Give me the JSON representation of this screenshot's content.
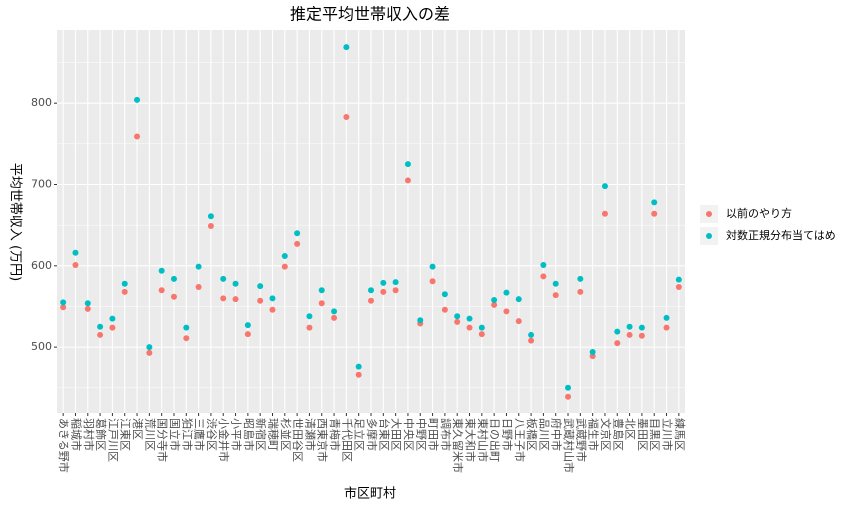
{
  "chart_data": {
    "type": "scatter",
    "title": "推定平均世帯収入の差",
    "x_label": "市区町村",
    "y_label": "平均世帯収入 (万円)",
    "categories": [
      "あきる野市",
      "稲城市",
      "羽村市",
      "葛飾区",
      "江戸川区",
      "江東区",
      "港区",
      "荒川区",
      "国分寺市",
      "国立市",
      "狛江市",
      "三鷹市",
      "渋谷区",
      "小金井市",
      "小平市",
      "昭島市",
      "新宿区",
      "瑞穂町",
      "杉並区",
      "世田谷区",
      "清瀬市",
      "西東京市",
      "青梅市",
      "千代田区",
      "足立区",
      "多摩市",
      "台東区",
      "大田区",
      "中央区",
      "中野区",
      "町田市",
      "調布市",
      "東久留米市",
      "東大和市",
      "東村山市",
      "日の出町",
      "日野市",
      "八王子市",
      "板橋区",
      "品川区",
      "府中市",
      "武蔵村山市",
      "武蔵野市",
      "福生市",
      "文京区",
      "豊島区",
      "北区",
      "墨田区",
      "目黒区",
      "立川市",
      "練馬区"
    ],
    "series": [
      {
        "name": "以前のやり方",
        "color": "#F8766D",
        "values": [
          549,
          601,
          547,
          515,
          524,
          568,
          759,
          493,
          570,
          562,
          511,
          574,
          649,
          560,
          559,
          516,
          557,
          546,
          599,
          627,
          524,
          554,
          536,
          783,
          466,
          557,
          568,
          570,
          705,
          529,
          581,
          546,
          531,
          524,
          516,
          552,
          544,
          532,
          508,
          587,
          564,
          439,
          568,
          489,
          664,
          505,
          515,
          514,
          664,
          524,
          574
        ]
      },
      {
        "name": "対数正規分布当てはめ",
        "color": "#00BFC4",
        "values": [
          555,
          616,
          554,
          525,
          535,
          578,
          804,
          500,
          594,
          584,
          524,
          599,
          661,
          584,
          578,
          527,
          575,
          560,
          612,
          640,
          538,
          570,
          544,
          869,
          476,
          570,
          579,
          580,
          725,
          533,
          599,
          565,
          538,
          535,
          524,
          558,
          567,
          559,
          515,
          601,
          578,
          450,
          584,
          494,
          698,
          519,
          525,
          524,
          678,
          536,
          583
        ]
      }
    ],
    "ylim": [
      419,
      890
    ],
    "yticks": [
      500,
      600,
      700,
      800
    ],
    "grid": true,
    "legend": "right"
  }
}
